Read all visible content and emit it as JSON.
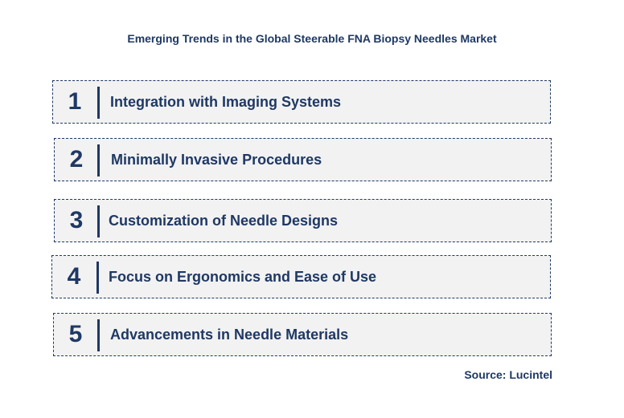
{
  "title": "Emerging Trends in the Global Steerable FNA Biopsy Needles Market",
  "items": [
    {
      "number": "1",
      "label": "Integration with Imaging Systems"
    },
    {
      "number": "2",
      "label": "Minimally Invasive Procedures"
    },
    {
      "number": "3",
      "label": "Customization of Needle Designs"
    },
    {
      "number": "4",
      "label": "Focus on Ergonomics and Ease of Use"
    },
    {
      "number": "5",
      "label": "Advancements in Needle Materials"
    }
  ],
  "source": "Source: Lucintel",
  "colors": {
    "text": "#1f3864",
    "box_fill": "#f2f2f2",
    "border": "#1f3864"
  }
}
